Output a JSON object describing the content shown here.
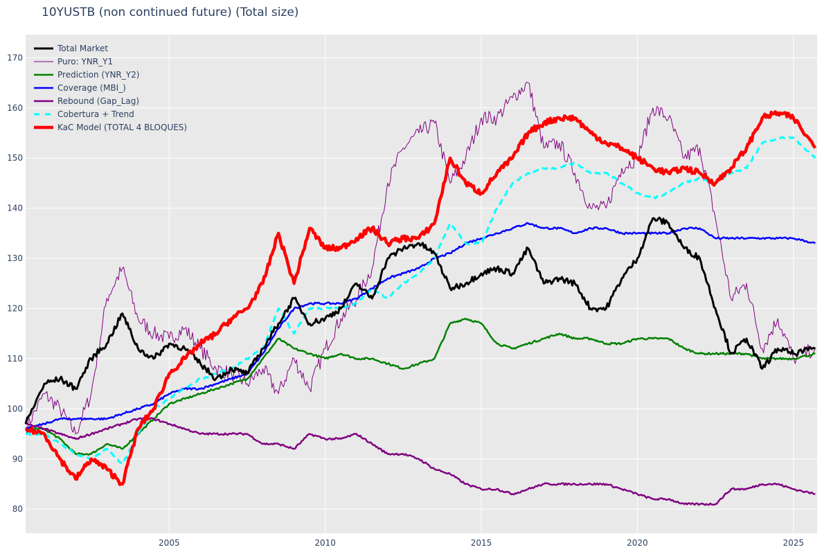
{
  "chart_data": {
    "type": "line",
    "title": "10YUSTB (non continued future) (Total size)",
    "xlabel": "",
    "ylabel": "",
    "xlim": [
      2000.4,
      2025.76
    ],
    "ylim": [
      75.2,
      174.6
    ],
    "grid": true,
    "legend_position": "top-left",
    "x_ticks": [
      2005,
      2010,
      2015,
      2020,
      2025
    ],
    "y_ticks": [
      80,
      90,
      100,
      110,
      120,
      130,
      140,
      150,
      160,
      170
    ],
    "x": [
      2000.4,
      2001,
      2001.5,
      2002,
      2002.5,
      2003,
      2003.5,
      2004,
      2004.5,
      2005,
      2005.5,
      2006,
      2006.5,
      2007,
      2007.5,
      2008,
      2008.5,
      2009,
      2009.5,
      2010,
      2010.5,
      2011,
      2011.5,
      2012,
      2012.5,
      2013,
      2013.5,
      2014,
      2014.5,
      2015,
      2015.5,
      2016,
      2016.5,
      2017,
      2017.5,
      2018,
      2018.5,
      2019,
      2019.5,
      2020,
      2020.5,
      2021,
      2021.5,
      2022,
      2022.5,
      2023,
      2023.5,
      2024,
      2024.5,
      2025,
      2025.7
    ],
    "series": [
      {
        "name": "Puro: YNR_Y1",
        "color": "#800080",
        "width": 1,
        "dash": false,
        "values": [
          96,
          103,
          100,
          95,
          103,
          122,
          128,
          118,
          115,
          114,
          116,
          112,
          108,
          107,
          105,
          108,
          103,
          110,
          104,
          112,
          118,
          122,
          128,
          145,
          152,
          155,
          157,
          145,
          150,
          158,
          158,
          162,
          165,
          152,
          153,
          147,
          140,
          140,
          148,
          150,
          160,
          158,
          150,
          152,
          138,
          122,
          125,
          112,
          118,
          110,
          112
        ]
      },
      {
        "name": "Prediction (YNR_Y2)",
        "color": "#008000",
        "width": 2.5,
        "dash": false,
        "values": [
          96,
          96,
          94,
          91,
          91,
          93,
          92,
          95,
          98,
          101,
          102,
          103,
          104,
          105,
          106,
          110,
          114,
          112,
          111,
          110,
          111,
          110,
          110,
          109,
          108,
          109,
          110,
          117,
          118,
          117,
          113,
          112,
          113,
          114,
          115,
          114,
          114,
          113,
          113,
          114,
          114,
          114,
          112,
          111,
          111,
          111,
          111,
          110,
          110,
          110,
          111
        ]
      },
      {
        "name": "Coverage (MBI_)",
        "color": "#0000ff",
        "width": 2.5,
        "dash": false,
        "values": [
          96,
          97,
          98,
          98,
          98,
          98,
          99,
          100,
          101,
          103,
          104,
          104,
          105,
          106,
          107,
          111,
          116,
          120,
          121,
          121,
          121,
          122,
          124,
          126,
          127,
          128,
          130,
          131,
          133,
          134,
          135,
          136,
          137,
          136,
          136,
          135,
          136,
          136,
          135,
          135,
          135,
          135,
          136,
          136,
          134,
          134,
          134,
          134,
          134,
          134,
          133
        ]
      },
      {
        "name": "Rebound (Gap_Lag)",
        "color": "#800080",
        "width": 2.5,
        "dash": false,
        "values": [
          97,
          96,
          95,
          94,
          95,
          96,
          97,
          98,
          98,
          97,
          96,
          95,
          95,
          95,
          95,
          93,
          93,
          92,
          95,
          94,
          94,
          95,
          93,
          91,
          91,
          90,
          88,
          87,
          85,
          84,
          84,
          83,
          84,
          85,
          85,
          85,
          85,
          85,
          84,
          83,
          82,
          82,
          81,
          81,
          81,
          84,
          84,
          85,
          85,
          84,
          83
        ]
      },
      {
        "name": "Cobertura + Trend",
        "color": "#00ffff",
        "width": 3,
        "dash": true,
        "values": [
          95,
          95,
          93,
          91,
          90,
          92,
          89,
          95,
          100,
          102,
          104,
          106,
          107,
          108,
          110,
          112,
          120,
          115,
          120,
          120,
          120,
          121,
          124,
          122,
          125,
          127,
          130,
          137,
          133,
          133,
          140,
          145,
          147,
          148,
          148,
          149,
          147,
          147,
          145,
          143,
          142,
          143,
          145,
          146,
          145,
          147,
          148,
          153,
          154,
          154,
          150
        ]
      },
      {
        "name": "Total Market",
        "color": "#000000",
        "width": 3,
        "dash": false,
        "values": [
          97,
          105,
          106,
          104,
          110,
          113,
          119,
          112,
          110,
          113,
          112,
          109,
          106,
          108,
          107,
          112,
          117,
          122,
          117,
          118,
          120,
          125,
          122,
          130,
          132,
          133,
          131,
          124,
          125,
          127,
          128,
          127,
          132,
          125,
          126,
          125,
          120,
          120,
          126,
          130,
          138,
          137,
          132,
          130,
          120,
          111,
          114,
          108,
          112,
          111,
          112
        ]
      },
      {
        "name": "KaC Model (TOTAL 4 BLOQUES)",
        "color": "#ff0000",
        "width": 4.5,
        "dash": false,
        "values": [
          96,
          95,
          90,
          86,
          90,
          88,
          85,
          96,
          100,
          107,
          110,
          113,
          115,
          118,
          120,
          125,
          135,
          125,
          136,
          132,
          132,
          134,
          136,
          133,
          134,
          134,
          137,
          150,
          145,
          143,
          147,
          150,
          155,
          157,
          158,
          158,
          155,
          153,
          152,
          150,
          148,
          147,
          148,
          147,
          145,
          148,
          152,
          158,
          159,
          158,
          152
        ]
      }
    ],
    "legend": [
      {
        "label": "Total Market",
        "color": "#000000",
        "width": 3,
        "dash": false
      },
      {
        "label": "Puro: YNR_Y1",
        "color": "#800080",
        "width": 1,
        "dash": false
      },
      {
        "label": "Prediction (YNR_Y2)",
        "color": "#008000",
        "width": 2.5,
        "dash": false
      },
      {
        "label": "Coverage (MBI_)",
        "color": "#0000ff",
        "width": 2.5,
        "dash": false
      },
      {
        "label": "Rebound (Gap_Lag)",
        "color": "#800080",
        "width": 2.5,
        "dash": false
      },
      {
        "label": "Cobertura + Trend",
        "color": "#00ffff",
        "width": 3,
        "dash": true
      },
      {
        "label": "KaC Model (TOTAL 4 BLOQUES)",
        "color": "#ff0000",
        "width": 4.5,
        "dash": false
      }
    ],
    "plot_bg": "#e9e9e9"
  }
}
